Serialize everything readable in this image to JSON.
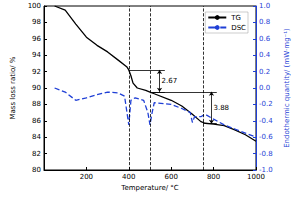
{
  "chart_data": {
    "type": "line",
    "x_label": "Temperature/ °C",
    "y_label": "Mass loss ratio/ %",
    "y2_label": "Endothermic quantity/ (mW·mg⁻¹)",
    "xlim": [
      0,
      1000
    ],
    "xticks": [
      200,
      400,
      600,
      800,
      1000
    ],
    "ylim": [
      80,
      100
    ],
    "yticks": [
      80,
      82,
      84,
      86,
      88,
      90,
      92,
      94,
      96,
      98,
      100
    ],
    "y2lim": [
      -1,
      1
    ],
    "y2ticks": [
      {
        "value": -1,
        "label": "-1.0"
      },
      {
        "value": -0.8,
        "label": "-0.8"
      },
      {
        "value": -0.6,
        "label": "-0.6"
      },
      {
        "value": -0.4,
        "label": "-0.4"
      },
      {
        "value": -0.2,
        "label": "-0.2"
      },
      {
        "value": 0,
        "label": "0.0"
      },
      {
        "value": 0.2,
        "label": "0.2"
      },
      {
        "value": 0.4,
        "label": "0.4"
      },
      {
        "value": 0.6,
        "label": "0.6"
      },
      {
        "value": 0.8,
        "label": "0.8"
      },
      {
        "value": 1,
        "label": "1.0"
      }
    ],
    "grid": false,
    "legend": "upper right",
    "series": [
      {
        "name": "TG",
        "color": "#000000",
        "line_style": "solid",
        "axis": "y",
        "x": [
          50,
          100,
          150,
          200,
          250,
          300,
          350,
          390,
          400,
          410,
          420,
          440,
          480,
          500,
          520,
          600,
          650,
          700,
          740,
          760,
          800,
          850,
          900,
          950,
          1000
        ],
        "values": [
          100,
          99.5,
          97.8,
          96.2,
          95.2,
          94.4,
          93.4,
          92.6,
          92.2,
          91.5,
          90.6,
          90.0,
          89.7,
          89.5,
          89.3,
          88.5,
          87.8,
          86.8,
          85.9,
          85.7,
          85.6,
          85.4,
          84.9,
          84.3,
          83.5
        ]
      },
      {
        "name": "DSC",
        "color": "#1f3fd6",
        "line_style": "dashed",
        "axis": "y2",
        "x": [
          50,
          100,
          150,
          200,
          250,
          300,
          350,
          380,
          400,
          410,
          430,
          470,
          490,
          500,
          510,
          520,
          600,
          650,
          690,
          700,
          710,
          740,
          760,
          800,
          850,
          900,
          950,
          1000
        ],
        "values": [
          0.0,
          -0.05,
          -0.15,
          -0.12,
          -0.08,
          -0.05,
          -0.06,
          -0.1,
          -0.45,
          -0.15,
          -0.12,
          -0.15,
          -0.3,
          -0.45,
          -0.3,
          -0.18,
          -0.2,
          -0.25,
          -0.3,
          -0.42,
          -0.35,
          -0.35,
          -0.32,
          -0.38,
          -0.45,
          -0.5,
          -0.55,
          -0.6
        ]
      }
    ],
    "vlines": [
      400,
      500,
      750
    ],
    "annotations": [
      {
        "text": "2.67",
        "x": 545,
        "y_from": 92.2,
        "y_to": 89.53,
        "x_left": [
          400,
          500
        ]
      },
      {
        "text": "3.88",
        "x": 790,
        "y_from": 89.53,
        "y_to": 85.65,
        "x_left": [
          500,
          750
        ]
      }
    ]
  }
}
